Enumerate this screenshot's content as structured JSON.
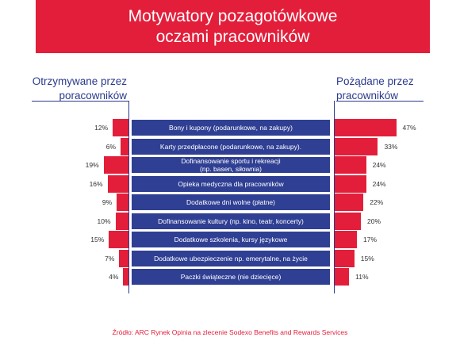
{
  "title": {
    "line1": "Motywatory pozagotówkowe",
    "line2": "oczami pracowników"
  },
  "left_label": {
    "line1": "Otrzymywane przez",
    "line2": "poracowników"
  },
  "right_label": {
    "line1": "Pożądane przez",
    "line2": "pracowników"
  },
  "source": "Źródło: ARC Rynek Opinia na zlecenie Sodexo Benefits and Rewards Services",
  "chart_data": {
    "type": "bar",
    "categories": [
      "Bony i kupony (podarunkowe, na zakupy)",
      "Karty przedpłacone (podarunkowe, na zakupy).",
      "Dofinansowanie sportu i rekreacji (np. basen, siłownia)",
      "Opieka medyczna dla pracowników",
      "Dodatkowe dni wolne (płatne)",
      "Dofinansowanie kultury (np. kino, teatr, koncerty)",
      "Dodatkowe szkolenia, kursy językowe",
      "Dodatkowe ubezpieczenie np. emerytalne, na życie",
      "Paczki świąteczne (nie dziecięce)"
    ],
    "category_lines": [
      [
        "Bony i kupony (podarunkowe, na zakupy)"
      ],
      [
        "Karty przedpłacone (podarunkowe, na zakupy)."
      ],
      [
        "Dofinansowanie sportu i rekreacji",
        "(np. basen, siłownia)"
      ],
      [
        "Opieka medyczna dla pracowników"
      ],
      [
        "Dodatkowe dni wolne (płatne)"
      ],
      [
        "Dofinansowanie kultury (np. kino, teatr, koncerty)"
      ],
      [
        "Dodatkowe szkolenia, kursy językowe"
      ],
      [
        "Dodatkowe ubezpieczenie np. emerytalne, na życie"
      ],
      [
        "Paczki świąteczne (nie dziecięce)"
      ]
    ],
    "series": [
      {
        "values": [
          12,
          6,
          19,
          16,
          9,
          10,
          15,
          7,
          4
        ],
        "labels": [
          "12%",
          "6%",
          "19%",
          "16%",
          "9%",
          "10%",
          "15%",
          "7%",
          "4%"
        ]
      },
      {
        "values": [
          47,
          33,
          24,
          24,
          22,
          20,
          17,
          15,
          11
        ],
        "labels": [
          "47%",
          "33%",
          "24%",
          "24%",
          "22%",
          "20%",
          "17%",
          "15%",
          "11%"
        ]
      }
    ],
    "colors": {
      "bars": "#e31e3a",
      "labels_box": "#2f3f93",
      "text": "#2b3a8c"
    }
  }
}
